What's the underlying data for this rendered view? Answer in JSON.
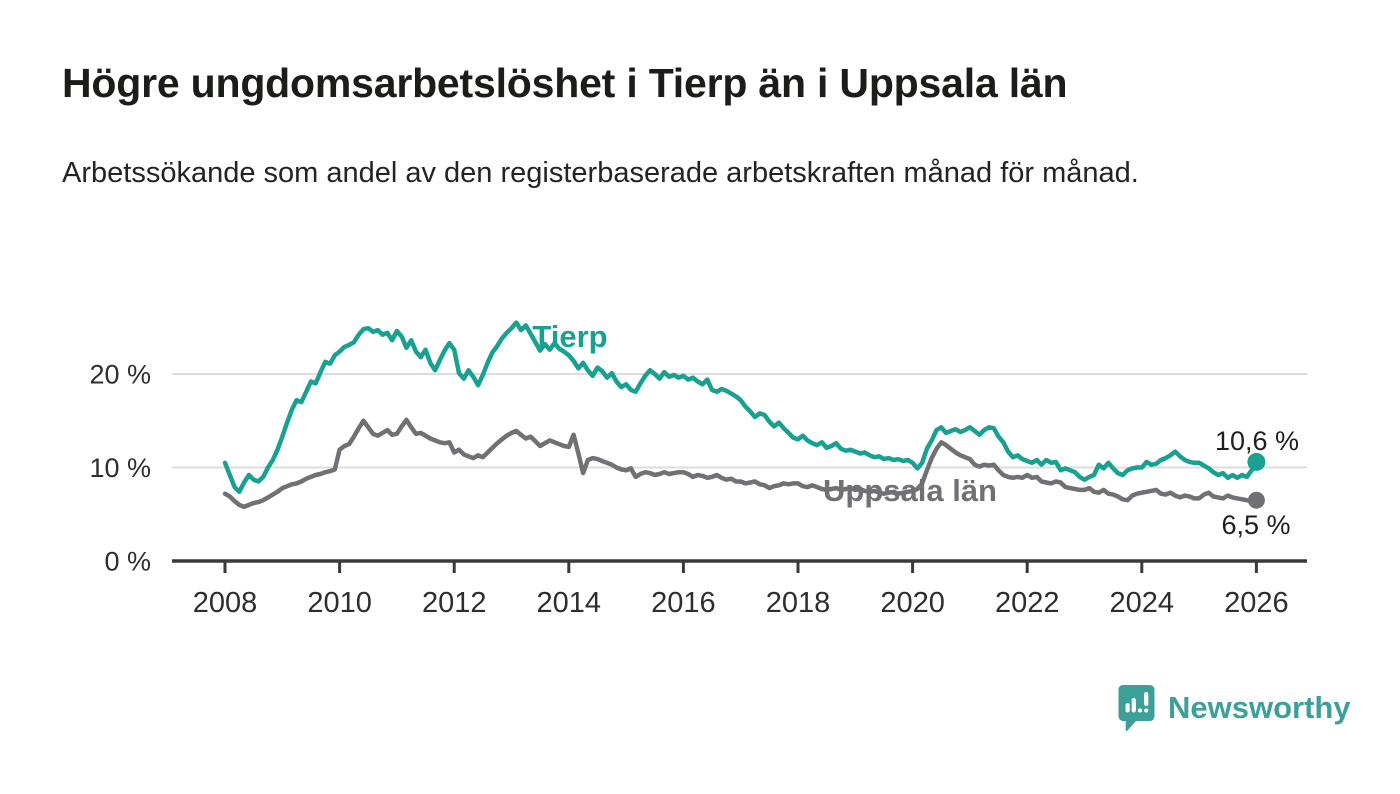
{
  "title": "Högre ungdomsarbetslöshet i Tierp än i Uppsala län",
  "subtitle": "Arbetssökande som andel av den registerbaserade arbetskraften månad för månad.",
  "branding": {
    "name": "Newsworthy",
    "icon": "newsworthy-speech-bubble-bar-chart-icon",
    "color": "#3d9f99"
  },
  "chart_data": {
    "type": "line",
    "title": "Högre ungdomsarbetslöshet i Tierp än i Uppsala län",
    "subtitle": "Arbetssökande som andel av den registerbaserade arbetskraften månad för månad.",
    "x_start": "2008-01",
    "x_end": "2026-01",
    "x_step": "monthly",
    "xlim": [
      2007.1,
      2026.9
    ],
    "ylim": [
      0,
      27.5
    ],
    "grid": "horizontal",
    "legend": "inline-labels",
    "colors": {
      "tierp": "#18a191",
      "uppsala": "#717175",
      "gridline": "#dcdcdc",
      "axis": "#3a3a3a"
    },
    "y_axis": [
      {
        "label": "0 %",
        "value": 0
      },
      {
        "label": "10 %",
        "value": 10
      },
      {
        "label": "20 %",
        "value": 20
      }
    ],
    "x_ticks": [
      {
        "label": "2008",
        "year": 2008
      },
      {
        "label": "2010",
        "year": 2010
      },
      {
        "label": "2012",
        "year": 2012
      },
      {
        "label": "2014",
        "year": 2014
      },
      {
        "label": "2016",
        "year": 2016
      },
      {
        "label": "2018",
        "year": 2018
      },
      {
        "label": "2020",
        "year": 2020
      },
      {
        "label": "2022",
        "year": 2022
      },
      {
        "label": "2024",
        "year": 2024
      },
      {
        "label": "2026",
        "year": 2026
      }
    ],
    "series": [
      {
        "name": "Tierp",
        "color": "#18a191",
        "end_value": 10.6,
        "end_label": "10,6 %",
        "values": [
          10.5,
          9.2,
          7.9,
          7.4,
          8.4,
          9.2,
          8.7,
          8.5,
          9.0,
          10.0,
          10.8,
          11.9,
          13.3,
          14.8,
          16.2,
          17.2,
          17.0,
          18.1,
          19.2,
          19.0,
          20.2,
          21.3,
          21.1,
          22.0,
          22.4,
          22.9,
          23.1,
          23.4,
          24.2,
          24.8,
          24.9,
          24.5,
          24.7,
          24.2,
          24.4,
          23.6,
          24.6,
          24.0,
          22.8,
          23.6,
          22.4,
          21.8,
          22.6,
          21.2,
          20.4,
          21.5,
          22.5,
          23.3,
          22.6,
          20.1,
          19.5,
          20.4,
          19.7,
          18.8,
          19.9,
          21.2,
          22.3,
          23.0,
          23.8,
          24.4,
          24.9,
          25.5,
          24.7,
          25.2,
          24.3,
          23.4,
          22.5,
          23.2,
          22.6,
          23.3,
          22.7,
          22.4,
          22.0,
          21.4,
          20.6,
          21.2,
          20.4,
          19.8,
          20.7,
          20.3,
          19.6,
          20.1,
          19.2,
          18.6,
          18.9,
          18.3,
          18.1,
          19.0,
          19.8,
          20.4,
          20.0,
          19.5,
          20.2,
          19.7,
          19.9,
          19.6,
          19.8,
          19.4,
          19.6,
          19.2,
          18.9,
          19.4,
          18.3,
          18.1,
          18.4,
          18.2,
          17.9,
          17.6,
          17.2,
          16.5,
          16.0,
          15.4,
          15.8,
          15.6,
          14.9,
          14.4,
          14.8,
          14.2,
          13.7,
          13.2,
          13.0,
          13.4,
          12.9,
          12.6,
          12.4,
          12.7,
          12.1,
          12.3,
          12.6,
          12.0,
          11.8,
          11.9,
          11.7,
          11.5,
          11.6,
          11.3,
          11.1,
          11.2,
          10.9,
          11.0,
          10.8,
          10.9,
          10.7,
          10.8,
          10.5,
          9.9,
          10.5,
          12.0,
          12.9,
          14.0,
          14.3,
          13.7,
          13.9,
          14.1,
          13.8,
          14.0,
          14.3,
          13.9,
          13.5,
          14.0,
          14.3,
          14.2,
          13.3,
          12.7,
          11.7,
          11.1,
          11.3,
          10.9,
          10.7,
          10.5,
          10.8,
          10.3,
          10.8,
          10.5,
          10.6,
          9.7,
          9.9,
          9.7,
          9.5,
          9.0,
          8.7,
          9.0,
          9.2,
          10.3,
          9.9,
          10.5,
          9.9,
          9.4,
          9.2,
          9.7,
          9.9,
          10.0,
          10.0,
          10.6,
          10.3,
          10.4,
          10.8,
          11.0,
          11.3,
          11.7,
          11.2,
          10.8,
          10.6,
          10.5,
          10.5,
          10.2,
          9.9,
          9.5,
          9.2,
          9.4,
          8.9,
          9.2,
          8.9,
          9.2,
          9.0,
          9.7,
          10.6
        ]
      },
      {
        "name": "Uppsala län",
        "color": "#717175",
        "end_value": 6.5,
        "end_label": "6,5 %",
        "values": [
          7.2,
          6.9,
          6.4,
          6.0,
          5.8,
          6.0,
          6.2,
          6.3,
          6.5,
          6.8,
          7.1,
          7.4,
          7.8,
          8.0,
          8.2,
          8.3,
          8.5,
          8.8,
          9.0,
          9.2,
          9.3,
          9.5,
          9.6,
          9.8,
          11.9,
          12.3,
          12.5,
          13.3,
          14.2,
          15.0,
          14.3,
          13.6,
          13.4,
          13.7,
          14.0,
          13.5,
          13.6,
          14.4,
          15.1,
          14.3,
          13.6,
          13.7,
          13.4,
          13.1,
          12.9,
          12.7,
          12.6,
          12.7,
          11.6,
          11.9,
          11.4,
          11.2,
          11.0,
          11.3,
          11.1,
          11.6,
          12.1,
          12.6,
          13.0,
          13.4,
          13.7,
          13.9,
          13.5,
          13.1,
          13.3,
          12.8,
          12.3,
          12.6,
          12.9,
          12.7,
          12.5,
          12.3,
          12.2,
          13.5,
          11.5,
          9.4,
          10.8,
          11.0,
          10.9,
          10.7,
          10.5,
          10.3,
          10.0,
          9.8,
          9.7,
          9.9,
          9.0,
          9.3,
          9.5,
          9.4,
          9.2,
          9.3,
          9.5,
          9.3,
          9.4,
          9.5,
          9.5,
          9.3,
          9.0,
          9.2,
          9.1,
          8.9,
          9.0,
          9.2,
          8.9,
          8.7,
          8.8,
          8.5,
          8.5,
          8.3,
          8.4,
          8.5,
          8.2,
          8.1,
          7.8,
          8.0,
          8.1,
          8.3,
          8.2,
          8.3,
          8.3,
          8.0,
          7.9,
          8.1,
          7.9,
          7.7,
          7.6,
          7.7,
          7.8,
          7.6,
          7.7,
          7.8,
          7.6,
          7.7,
          7.5,
          7.4,
          7.5,
          7.3,
          7.2,
          7.3,
          7.4,
          7.2,
          7.3,
          7.4,
          7.5,
          7.7,
          8.3,
          9.7,
          11.0,
          12.0,
          12.7,
          12.4,
          12.0,
          11.6,
          11.3,
          11.1,
          10.9,
          10.3,
          10.1,
          10.3,
          10.2,
          10.3,
          9.7,
          9.2,
          9.0,
          8.9,
          9.0,
          8.9,
          9.2,
          8.9,
          9.0,
          8.5,
          8.4,
          8.3,
          8.5,
          8.4,
          7.9,
          7.8,
          7.7,
          7.6,
          7.6,
          7.8,
          7.4,
          7.3,
          7.6,
          7.2,
          7.1,
          6.9,
          6.6,
          6.5,
          7.0,
          7.2,
          7.3,
          7.4,
          7.5,
          7.6,
          7.2,
          7.1,
          7.3,
          7.0,
          6.8,
          7.0,
          6.9,
          6.7,
          6.7,
          7.1,
          7.3,
          6.9,
          6.8,
          6.7,
          7.0,
          6.8,
          6.7,
          6.6,
          6.5,
          6.4,
          6.5
        ]
      }
    ]
  }
}
